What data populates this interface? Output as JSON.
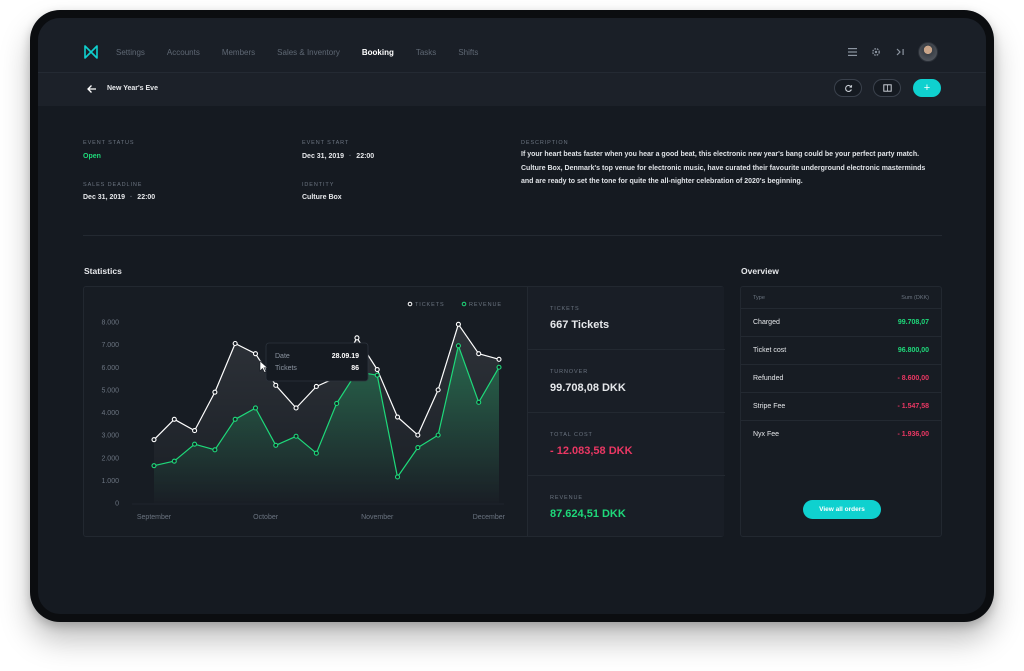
{
  "nav": {
    "items": [
      "Settings",
      "Accounts",
      "Members",
      "Sales & Inventory",
      "Booking",
      "Tasks",
      "Shifts"
    ],
    "active": "Booking",
    "icons": [
      "list-icon",
      "gear-icon",
      "collapse-icon"
    ]
  },
  "subheader": {
    "title": "New Year's Eve",
    "add_label": "+"
  },
  "event": {
    "status_label": "EVENT STATUS",
    "status_value": "Open",
    "start_label": "EVENT START",
    "start_date": "Dec 31, 2019",
    "start_time": "22:00",
    "deadline_label": "SALES DEADLINE",
    "deadline_date": "Dec 31, 2019",
    "deadline_time": "22:00",
    "identity_label": "IDENTITY",
    "identity_value": "Culture Box",
    "description_label": "DESCRIPTION",
    "description": "If your heart beats faster when you hear a good beat, this electronic new year's bang could be your perfect party match. Culture Box, Denmark's top venue for electronic music, have curated their favourite underground electronic masterminds and are ready to set the tone for quite the all-nighter celebration of 2020's beginning."
  },
  "statistics": {
    "title": "Statistics",
    "tooltip": {
      "date_label": "Date",
      "date_value": "28.09.19",
      "tickets_label": "Tickets",
      "tickets_value": "86"
    },
    "kpis": [
      {
        "label": "TICKETS",
        "value": "667 Tickets",
        "tone": "default"
      },
      {
        "label": "TURNOVER",
        "value": "99.708,08 DKK",
        "tone": "default"
      },
      {
        "label": "TOTAL COST",
        "value": "- 12.083,58 DKK",
        "tone": "red"
      },
      {
        "label": "REVENUE",
        "value": "87.624,51 DKK",
        "tone": "green"
      }
    ]
  },
  "chart_data": {
    "type": "line",
    "title": "",
    "xlabel": "",
    "ylabel": "",
    "ylim": [
      0,
      8000
    ],
    "yticks": [
      "0",
      "1.000",
      "2.000",
      "3.000",
      "4.000",
      "5.000",
      "6.000",
      "7.000",
      "8.000"
    ],
    "x_tick_labels": [
      "September",
      "October",
      "November",
      "December"
    ],
    "x_tick_index": [
      0,
      5.5,
      11,
      16.5
    ],
    "grid": false,
    "legend_position": "top-right",
    "series": [
      {
        "name": "TICKETS",
        "color": "#ffffff",
        "values": [
          2800,
          3700,
          3200,
          4900,
          7050,
          6600,
          5200,
          4200,
          5150,
          5550,
          7300,
          5900,
          3800,
          3000,
          5000,
          7900,
          6600,
          6350
        ]
      },
      {
        "name": "REVENUE",
        "color": "#1ed97a",
        "values": [
          1650,
          1850,
          2600,
          2350,
          3700,
          4200,
          2550,
          2950,
          2200,
          4400,
          5800,
          5650,
          1150,
          2450,
          3000,
          6950,
          4450,
          6000
        ]
      }
    ]
  },
  "overview": {
    "title": "Overview",
    "col_type": "Type",
    "col_sum": "Sum (DKK)",
    "rows": [
      {
        "type": "Charged",
        "sum": "99.708,07",
        "tone": "green"
      },
      {
        "type": "Ticket cost",
        "sum": "96.800,00",
        "tone": "green"
      },
      {
        "type": "Refunded",
        "sum": "- 8.600,00",
        "tone": "red"
      },
      {
        "type": "Stripe Fee",
        "sum": "- 1.547,58",
        "tone": "red"
      },
      {
        "type": "Nyx Fee",
        "sum": "- 1.936,00",
        "tone": "red"
      }
    ],
    "button_label": "View all orders"
  },
  "colors": {
    "accent": "#0fd1cf",
    "positive": "#1ed97a",
    "negative": "#ea3763"
  }
}
